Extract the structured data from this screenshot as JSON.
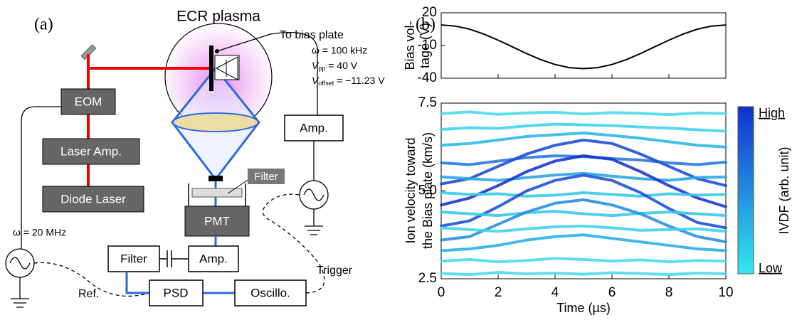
{
  "diagram": {
    "panel_label": "(a)",
    "plasma": "ECR plasma",
    "to_bias_plate": "To bias plate",
    "bias_freq": "ω = 100 kHz",
    "vpp": {
      "symbol": "V",
      "subscript": "pp",
      "text": " = 40 V"
    },
    "voffset": {
      "symbol": "V",
      "subscript": "offset",
      "text": " = −11.23 V"
    },
    "eom": "EOM",
    "laser_amp": "Laser Amp.",
    "diode_laser": "Diode Laser",
    "filter_label": "Filter",
    "pmt": "PMT",
    "amp_bias": "Amp.",
    "amp_signal": "Amp.",
    "filter_box": "Filter",
    "psd": "PSD",
    "oscillo": "Oscillo.",
    "trigger": "Trigger",
    "ref": "Ref.",
    "ref_freq": "ω = 20 MHz"
  },
  "panel_b_label": "(b)",
  "chart_data": [
    {
      "type": "line",
      "y_label": [
        "Bias vol-",
        "tage (V)"
      ],
      "x": [
        0,
        0.5,
        1,
        1.5,
        2,
        2.5,
        3,
        3.5,
        4,
        4.5,
        5,
        5.5,
        6,
        6.5,
        7,
        7.5,
        8,
        8.5,
        9,
        9.5,
        10
      ],
      "series": [
        {
          "color": "#000000",
          "values": [
            8.8,
            7.8,
            5.0,
            0.5,
            -5.1,
            -11.2,
            -17.4,
            -23.0,
            -27.4,
            -30.3,
            -31.2,
            -30.3,
            -27.4,
            -23.0,
            -17.4,
            -11.2,
            -5.1,
            0.5,
            5.0,
            7.8,
            8.8
          ]
        }
      ],
      "xlim": [
        0,
        10
      ],
      "xticks": [
        0,
        2,
        4,
        6,
        8,
        10
      ],
      "ylim": [
        -40,
        20
      ],
      "yticks": [
        20,
        -10,
        -40
      ]
    },
    {
      "type": "traces",
      "x_label": "Time (µs)",
      "y_label": [
        "Ion velocity toward",
        "the Bias plate (km/s)"
      ],
      "x": [
        0,
        1,
        2,
        3,
        4,
        5,
        6,
        7,
        8,
        9,
        10
      ],
      "series": [
        {
          "color": "#4fd8ee",
          "values": [
            7.2,
            7.25,
            7.18,
            7.22,
            7.24,
            7.19,
            7.23,
            7.21,
            7.17,
            7.22,
            7.2
          ]
        },
        {
          "color": "#45d2ee",
          "values": [
            6.75,
            6.8,
            6.78,
            6.85,
            6.9,
            6.88,
            6.86,
            6.82,
            6.79,
            6.74,
            6.7
          ]
        },
        {
          "color": "#2fb8e8",
          "values": [
            6.3,
            6.35,
            6.45,
            6.55,
            6.6,
            6.65,
            6.58,
            6.5,
            6.4,
            6.3,
            6.25
          ]
        },
        {
          "color": "#2a7ae0",
          "values": [
            5.8,
            5.75,
            5.85,
            5.95,
            6.0,
            5.98,
            5.92,
            5.88,
            5.8,
            5.75,
            5.82
          ]
        },
        {
          "color": "#1f4fd8",
          "values": [
            5.2,
            5.35,
            5.7,
            6.05,
            6.3,
            6.45,
            6.35,
            6.05,
            5.7,
            5.35,
            5.15
          ]
        },
        {
          "color": "#29a6e6",
          "values": [
            5.4,
            5.35,
            5.3,
            5.38,
            5.45,
            5.5,
            5.42,
            5.35,
            5.3,
            5.38,
            5.4
          ]
        },
        {
          "color": "#1836cf",
          "values": [
            4.6,
            4.8,
            5.15,
            5.55,
            5.85,
            6.0,
            5.9,
            5.55,
            5.15,
            4.8,
            4.55
          ]
        },
        {
          "color": "#3cc8ec",
          "values": [
            4.95,
            4.9,
            4.92,
            4.85,
            4.88,
            4.95,
            4.9,
            4.85,
            4.92,
            4.88,
            4.9
          ]
        },
        {
          "color": "#1e52d8",
          "values": [
            4.0,
            4.15,
            4.55,
            5.0,
            5.3,
            5.45,
            5.3,
            4.95,
            4.5,
            4.1,
            3.95
          ]
        },
        {
          "color": "#3cc8ec",
          "values": [
            4.4,
            4.35,
            4.3,
            4.38,
            4.42,
            4.35,
            4.3,
            4.36,
            4.4,
            4.35,
            4.3
          ]
        },
        {
          "color": "#2b8fe2",
          "values": [
            3.6,
            3.7,
            4.05,
            4.4,
            4.65,
            4.75,
            4.6,
            4.35,
            4.0,
            3.7,
            3.55
          ]
        },
        {
          "color": "#45d2ee",
          "values": [
            3.95,
            3.9,
            3.85,
            3.92,
            3.98,
            4.0,
            3.95,
            3.88,
            3.9,
            3.92,
            3.85
          ]
        },
        {
          "color": "#2bb0e8",
          "values": [
            3.3,
            3.35,
            3.45,
            3.6,
            3.7,
            3.75,
            3.65,
            3.55,
            3.45,
            3.35,
            3.3
          ]
        },
        {
          "color": "#4fd8ee",
          "values": [
            3.0,
            3.05,
            2.98,
            3.02,
            3.08,
            3.05,
            3.0,
            3.04,
            2.98,
            3.02,
            3.0
          ]
        },
        {
          "color": "#4fd8ee",
          "values": [
            2.65,
            2.62,
            2.68,
            2.64,
            2.66,
            2.63,
            2.67,
            2.65,
            2.62,
            2.66,
            2.64
          ]
        }
      ],
      "xlim": [
        0,
        10
      ],
      "xticks": [
        0,
        2,
        4,
        6,
        8,
        10
      ],
      "ylim": [
        2.5,
        7.5
      ],
      "yticks": [
        2.5,
        {
          "value": 5,
          "label": "5.0"
        },
        7.5
      ],
      "colorbar": {
        "label": "IVDF (arb. unit)",
        "high": "High",
        "low": "Low",
        "colors": [
          "#33e8f0",
          "#1030d0"
        ]
      }
    }
  ]
}
